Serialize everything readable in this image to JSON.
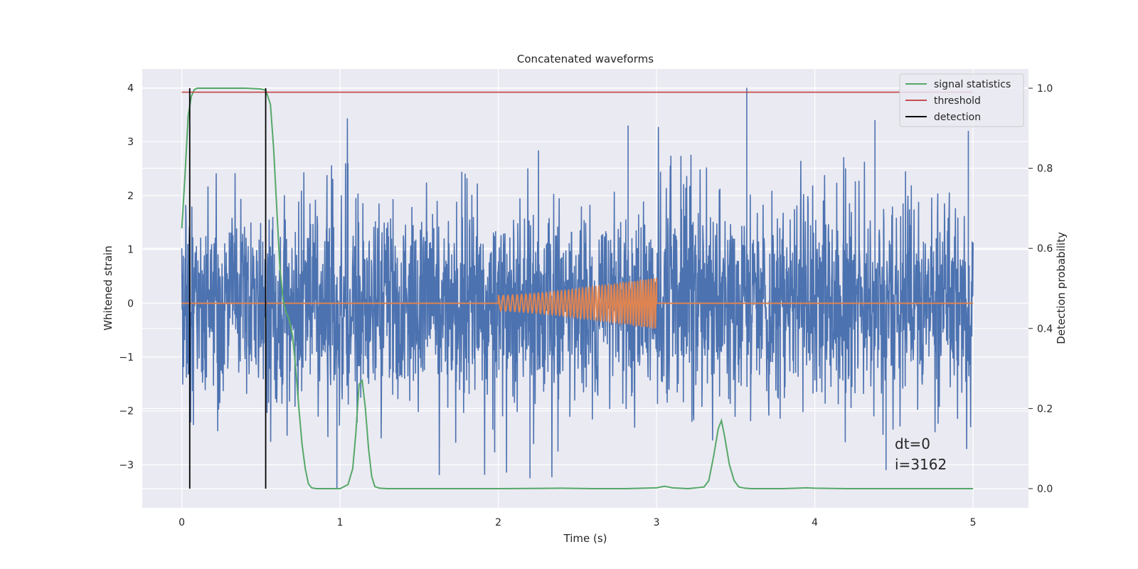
{
  "chart_data": {
    "type": "line",
    "title": "Concatenated waveforms",
    "xlabel": "Time (s)",
    "ylabel": "Whitened strain",
    "ylabel_right": "Detection probability",
    "xlim": [
      -0.25,
      5.35
    ],
    "ylim": [
      -3.8,
      4.35
    ],
    "ylim_right": [
      -0.048,
      1.048
    ],
    "x_ticks": [
      "0",
      "1",
      "2",
      "3",
      "4",
      "5"
    ],
    "x_tick_values": [
      0,
      1,
      2,
      3,
      4,
      5
    ],
    "y_ticks": [
      "4",
      "3",
      "2",
      "1",
      "0",
      "−1",
      "−2",
      "−3"
    ],
    "y_tick_values": [
      4,
      3,
      2,
      1,
      0,
      -1,
      -2,
      -3
    ],
    "y_ticks_right": [
      "1.0",
      "0.8",
      "0.6",
      "0.4",
      "0.2",
      "0.0"
    ],
    "y_tick_values_right": [
      1.0,
      0.8,
      0.6,
      0.4,
      0.2,
      0.0
    ],
    "grid": true,
    "legend_position": "top-right",
    "colors": {
      "background": "#eaeaf2",
      "grid": "#ffffff",
      "strain": "#4c72b0",
      "waveform": "#dd8452",
      "signal_statistics": "#55a868",
      "threshold": "#c44e52",
      "detection": "#000000"
    },
    "noise": {
      "x_range": [
        0,
        5
      ],
      "sigma": 0.95,
      "min": -3.45,
      "max": 4.0,
      "spikes": [
        {
          "t": 0.98,
          "value": -3.45
        },
        {
          "t": 3.57,
          "value": 4.0
        },
        {
          "t": 1.05,
          "value": 2.6
        },
        {
          "t": 2.82,
          "value": 3.3
        },
        {
          "t": 4.38,
          "value": 3.4
        },
        {
          "t": 4.97,
          "value": 3.2
        },
        {
          "t": 2.2,
          "value": -3.25
        },
        {
          "t": 4.45,
          "value": -3.1
        }
      ]
    },
    "injected_waveform": {
      "x_range": [
        2.0,
        3.0
      ],
      "amplitude_start": 0.14,
      "amplitude_end": 0.47,
      "frequency_start_hz": 32,
      "frequency_end_hz": 60
    },
    "series": [
      {
        "name": "signal statistics",
        "axis": "right",
        "x": [
          0,
          0.02,
          0.04,
          0.06,
          0.08,
          0.1,
          0.2,
          0.3,
          0.4,
          0.5,
          0.53,
          0.56,
          0.58,
          0.6,
          0.62,
          0.64,
          0.66,
          0.68,
          0.7,
          0.72,
          0.74,
          0.76,
          0.78,
          0.8,
          0.82,
          0.85,
          0.9,
          0.95,
          1.0,
          1.05,
          1.08,
          1.1,
          1.12,
          1.14,
          1.16,
          1.18,
          1.2,
          1.22,
          1.25,
          1.3,
          1.5,
          2.0,
          2.4,
          2.6,
          2.8,
          3.0,
          3.05,
          3.1,
          3.2,
          3.3,
          3.33,
          3.36,
          3.39,
          3.41,
          3.43,
          3.46,
          3.49,
          3.52,
          3.56,
          3.6,
          3.8,
          3.95,
          4.0,
          4.2,
          4.6,
          5.0
        ],
        "y": [
          0.65,
          0.78,
          0.93,
          0.98,
          0.997,
          1.0,
          1.0,
          1.0,
          1.0,
          0.998,
          0.995,
          0.96,
          0.85,
          0.7,
          0.55,
          0.47,
          0.44,
          0.42,
          0.38,
          0.3,
          0.2,
          0.11,
          0.05,
          0.012,
          0.002,
          0.0,
          0.0,
          0.0,
          0.0,
          0.01,
          0.05,
          0.14,
          0.26,
          0.27,
          0.2,
          0.1,
          0.03,
          0.005,
          0.001,
          0.0,
          0.0,
          0.0,
          0.001,
          0.0,
          0.0,
          0.002,
          0.006,
          0.002,
          0.0,
          0.004,
          0.02,
          0.08,
          0.15,
          0.17,
          0.13,
          0.06,
          0.02,
          0.004,
          0.001,
          0.0,
          0.0,
          0.002,
          0.001,
          0.0,
          0.0,
          0.0
        ]
      },
      {
        "name": "threshold",
        "axis": "right",
        "x": [
          0,
          5
        ],
        "y": [
          0.99,
          0.99
        ]
      },
      {
        "name": "detection",
        "axis": "right",
        "vlines": [
          0.05,
          0.53
        ],
        "y_range": [
          0.0,
          1.0
        ]
      }
    ],
    "annotations": [
      "dt=0",
      "i=3162"
    ]
  }
}
